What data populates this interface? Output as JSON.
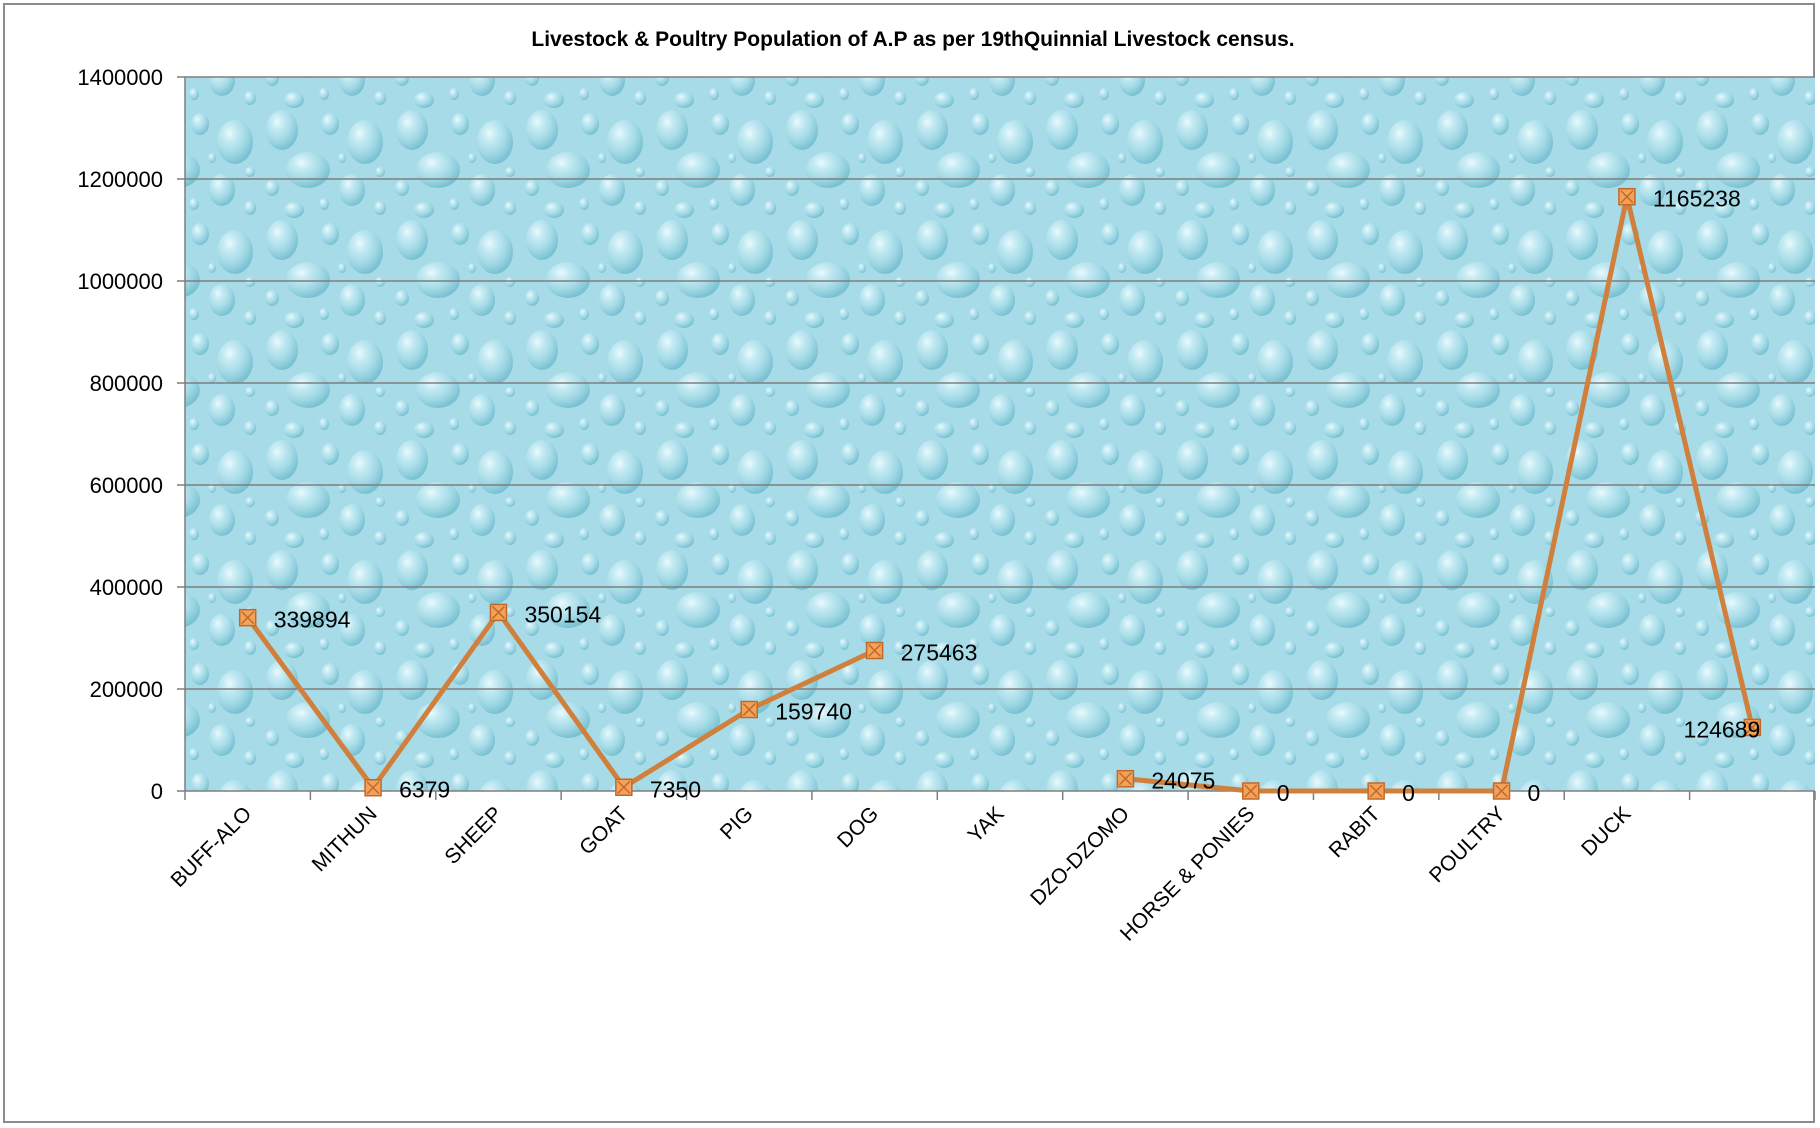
{
  "chart_data": {
    "type": "line",
    "title": "Livestock & Poultry Population of A.P as per 19thQuinnial Livestock census.",
    "xlabel": "",
    "ylabel": "",
    "ylim": [
      0,
      1400000
    ],
    "yticks": [
      0,
      200000,
      400000,
      600000,
      800000,
      1000000,
      1200000,
      1400000
    ],
    "grid": true,
    "legend": "none",
    "categories": [
      "BUFF-ALO",
      "MITHUN",
      "SHEEP",
      "GOAT",
      "PIG",
      "DOG",
      "YAK",
      "DZO-DZOMO",
      "HORSE & PONIES",
      "RABIT",
      "POULTRY",
      "DUCK",
      ""
    ],
    "series": [
      {
        "values": [
          339894,
          6379,
          350154,
          7350,
          159740,
          275463,
          null,
          24075,
          0,
          0,
          0,
          1165238,
          124689
        ],
        "data_labels": [
          "339894",
          "6379",
          "350154",
          "7350",
          "159740",
          "275463",
          "",
          "24075",
          "0",
          "0",
          "0",
          "1165238",
          "124689"
        ],
        "line_color": "#d0803c",
        "marker_fill": "#f4a15a",
        "marker_edge": "#c06a2a"
      }
    ],
    "plot_background": "#a8dce8",
    "grid_color": "#7f7f7f"
  }
}
